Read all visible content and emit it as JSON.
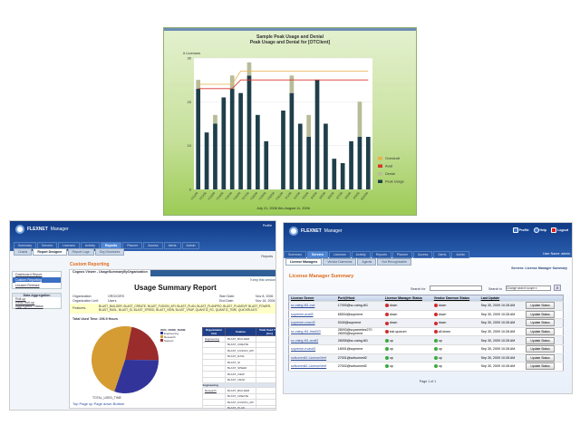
{
  "chart_data": {
    "type": "bar",
    "title": "Sample Peak Usage and Denial",
    "subtitle": "Peak Usage and Denial for [OTClient]",
    "ylabel": "# Licenses",
    "xlabel": "July 21, 2006 thru August 11, 2006",
    "ylim": [
      0,
      30
    ],
    "yticks": [
      0,
      10,
      20,
      30
    ],
    "categories": [
      "7/21/06",
      "7/22/06",
      "7/23/06",
      "7/24/06",
      "7/25/06",
      "7/26/06",
      "7/27/06",
      "7/28/06",
      "7/29/06",
      "7/30/06",
      "7/31/06",
      "8/1/06",
      "8/2/06",
      "8/3/06",
      "8/4/06",
      "8/5/06",
      "8/6/06",
      "8/7/06",
      "8/8/06",
      "8/9/06",
      "8/10/06"
    ],
    "series": [
      {
        "name": "Peak Usage",
        "type": "bar",
        "color": "#1f3f4a",
        "values": [
          23,
          13,
          15,
          21,
          23,
          22,
          26,
          17,
          11,
          0,
          18,
          22,
          15,
          12,
          25,
          15,
          7,
          6,
          11,
          12,
          12
        ]
      },
      {
        "name": "Denial",
        "type": "stacked-bar",
        "color": "#b8bc98",
        "values": [
          2,
          0,
          2,
          0,
          3,
          0,
          3,
          0,
          0,
          0,
          0,
          4,
          0,
          5,
          0,
          0,
          0,
          0,
          0,
          8,
          0
        ]
      },
      {
        "name": "Avail",
        "type": "line",
        "color": "#d9352a",
        "values": [
          23,
          23,
          23,
          23,
          23,
          25,
          25,
          25,
          25,
          25,
          25,
          25,
          25,
          25,
          25,
          25,
          25,
          25,
          25,
          25,
          25
        ]
      },
      {
        "name": "Overdraft",
        "type": "line",
        "color": "#e8b04a",
        "values": [
          24,
          24,
          24,
          24,
          24,
          27,
          27,
          27,
          27,
          27,
          27,
          27,
          27,
          27,
          27,
          27,
          27,
          27,
          27,
          27,
          27
        ]
      }
    ],
    "legend_order": [
      "Overdraft",
      "Avail",
      "Denial",
      "Peak Usage"
    ],
    "legend": "right",
    "grid": true
  },
  "left": {
    "brand": "FLEXNET",
    "product": "Manager",
    "profile": "Profile",
    "tabs": [
      "Summary",
      "Servers",
      "Licenses",
      "Activity",
      "Reports",
      "Planner",
      "Access",
      "Alerts",
      "Admin"
    ],
    "active_tab": 4,
    "subtabs": [
      "Charts",
      "Report Designer",
      "Report Logs",
      "Org Structures"
    ],
    "active_subtab": 1,
    "breadcrumb": "Reports",
    "nav": [
      "Dashboard Report",
      "Custom Reporting",
      "Unused Release"
    ],
    "nav_active": 1,
    "agg_title": "Data Aggregation",
    "agg": [
      "Roll-up",
      "Redo Roll-up",
      "Aggregation Status"
    ],
    "section_title": "Custom Reporting",
    "viewer_tab": "Cognos Viewer - UsageSummaryByOrganization",
    "keep_version": "Keep this version",
    "report_title": "Usage Summary Report",
    "fields": {
      "org_label": "Organization:",
      "org": "ORG/GIRS",
      "unit_label": "Organization Unit:",
      "unit": "Users",
      "start_label": "Start Date:",
      "start": "Nov 8, 2006",
      "end_label": "End Date:",
      "end": "Nov 18, 2006",
      "features_label": "Features:",
      "features": "BLAST_BUILDER, BLAST_CREATE, BLAST_FUSION_API, BLAST_PLAN, BLAST_PLANPRO, BLAST_PLANSVP, BLAST_POWER, BLAST_RASL, BLAST_SI, BLAST_SPEED, BLAST_VIEW, BLAST_VRAP, QUANTIZ_RC, QUANTIZ_TIME, QUICKRULES"
    },
    "total": "Total Used Time: 206.9 Hours",
    "pie": {
      "legend_title": "ORG_NODE_NAME",
      "slices": [
        {
          "name": "Engineering",
          "value": 30,
          "color": "#33349a"
        },
        {
          "name": "Research",
          "value": 48,
          "color": "#d49c33"
        },
        {
          "name": "Support",
          "value": 22,
          "color": "#9b2c2c"
        }
      ]
    },
    "pie_footer": "TOTAL_USED_TIME",
    "pager": "Top  Page up  Page down  Bottom",
    "table_headers": [
      "Organization Unit",
      "Feature",
      "Total Used Time (hrs)"
    ],
    "groups": [
      {
        "unit": "Engineering",
        "features": [
          "BLAST_BUILDER",
          "BLAST_CREATE",
          "BLAST_FUSION_API",
          "BLAST_RASL",
          "BLAST_SI",
          "BLAST_SPEED",
          "BLAST_VIEW",
          "BLAST_VRAP"
        ]
      },
      {
        "unit": "Research",
        "header": "Engineering",
        "features": [
          "BLAST_BUILDER",
          "BLAST_CREATE",
          "BLAST_FUSION_API",
          "BLAST_PLAN",
          "BLAST_PLANPRO",
          "BLAST_PLANSVP",
          "BLAST_POWER"
        ]
      }
    ]
  },
  "right": {
    "brand": "FLEXNET",
    "product": "Manager",
    "header_links": [
      "Profile",
      "Help",
      "Logout"
    ],
    "tabs": [
      "Summary",
      "Servers",
      "Licenses",
      "Activity",
      "Reports",
      "Planner",
      "Access",
      "Alerts",
      "Admin"
    ],
    "active_tab": 1,
    "user": "User Name: admin",
    "subtabs": [
      "License Managers",
      "Vendor Daemons",
      "Agents",
      "Not Recognizable"
    ],
    "active_subtab": 0,
    "breadcrumb": "Servers: License Manager Summary",
    "title": "License Manager Summary",
    "search_label": "Search for",
    "search_value": "",
    "search_in_label": "Search in",
    "scope": "Change search scope",
    "headers": [
      "License Server",
      "Port@Host",
      "License Manager Status",
      "Vendor Daemon Status",
      "Last Update",
      ""
    ],
    "rows": [
      {
        "server": "sc-vaing-t61-cvd",
        "port": "17000@sc-vaing-t61",
        "lm": "down",
        "vd": "down",
        "upd": "Sep 30, 2009 10:28 AM"
      },
      {
        "server": "supreme-avail3",
        "port": "65534@supreme",
        "lm": "down",
        "vd": "down",
        "upd": "Sep 30, 2009 10:28 AM"
      },
      {
        "server": "supreme-cvavd3",
        "port": "5340@supreme",
        "lm": "down",
        "vd": "down",
        "upd": "Sep 30, 2009 10:28 AM"
      },
      {
        "server": "sc-vaing-t61-triad3/3",
        "port": "28093@scyamebez270 28093@supreme",
        "lm": "lost quorum",
        "vd": "all down",
        "upd": "Sep 30, 2009 10:28 AM"
      },
      {
        "server": "sc-vaing-t61-avail3",
        "port": "28055@sc-vaing-t61",
        "lm": "up",
        "vd": "up",
        "upd": "Sep 30, 2009 10:28 AM"
      },
      {
        "server": "supreme-rrvavd3",
        "port": "18001@supreme",
        "lm": "up",
        "vd": "up",
        "upd": "Sep 30, 2009 10:28 AM"
      },
      {
        "server": "sofsummit2-LicenseVerif",
        "port": "27001@sofsummit2",
        "lm": "up",
        "vd": "up",
        "upd": "Sep 30, 2009 10:28 AM"
      },
      {
        "server": "sofsummit2-LicenseVerif",
        "port": "27002@sofsummit2",
        "lm": "up",
        "vd": "up",
        "upd": "Sep 30, 2009 10:28 AM"
      }
    ],
    "update_label": "Update Status",
    "pager": "Page 1 of 1",
    "colors": {
      "up": "#3caa3c",
      "down": "#d42a2a"
    }
  }
}
